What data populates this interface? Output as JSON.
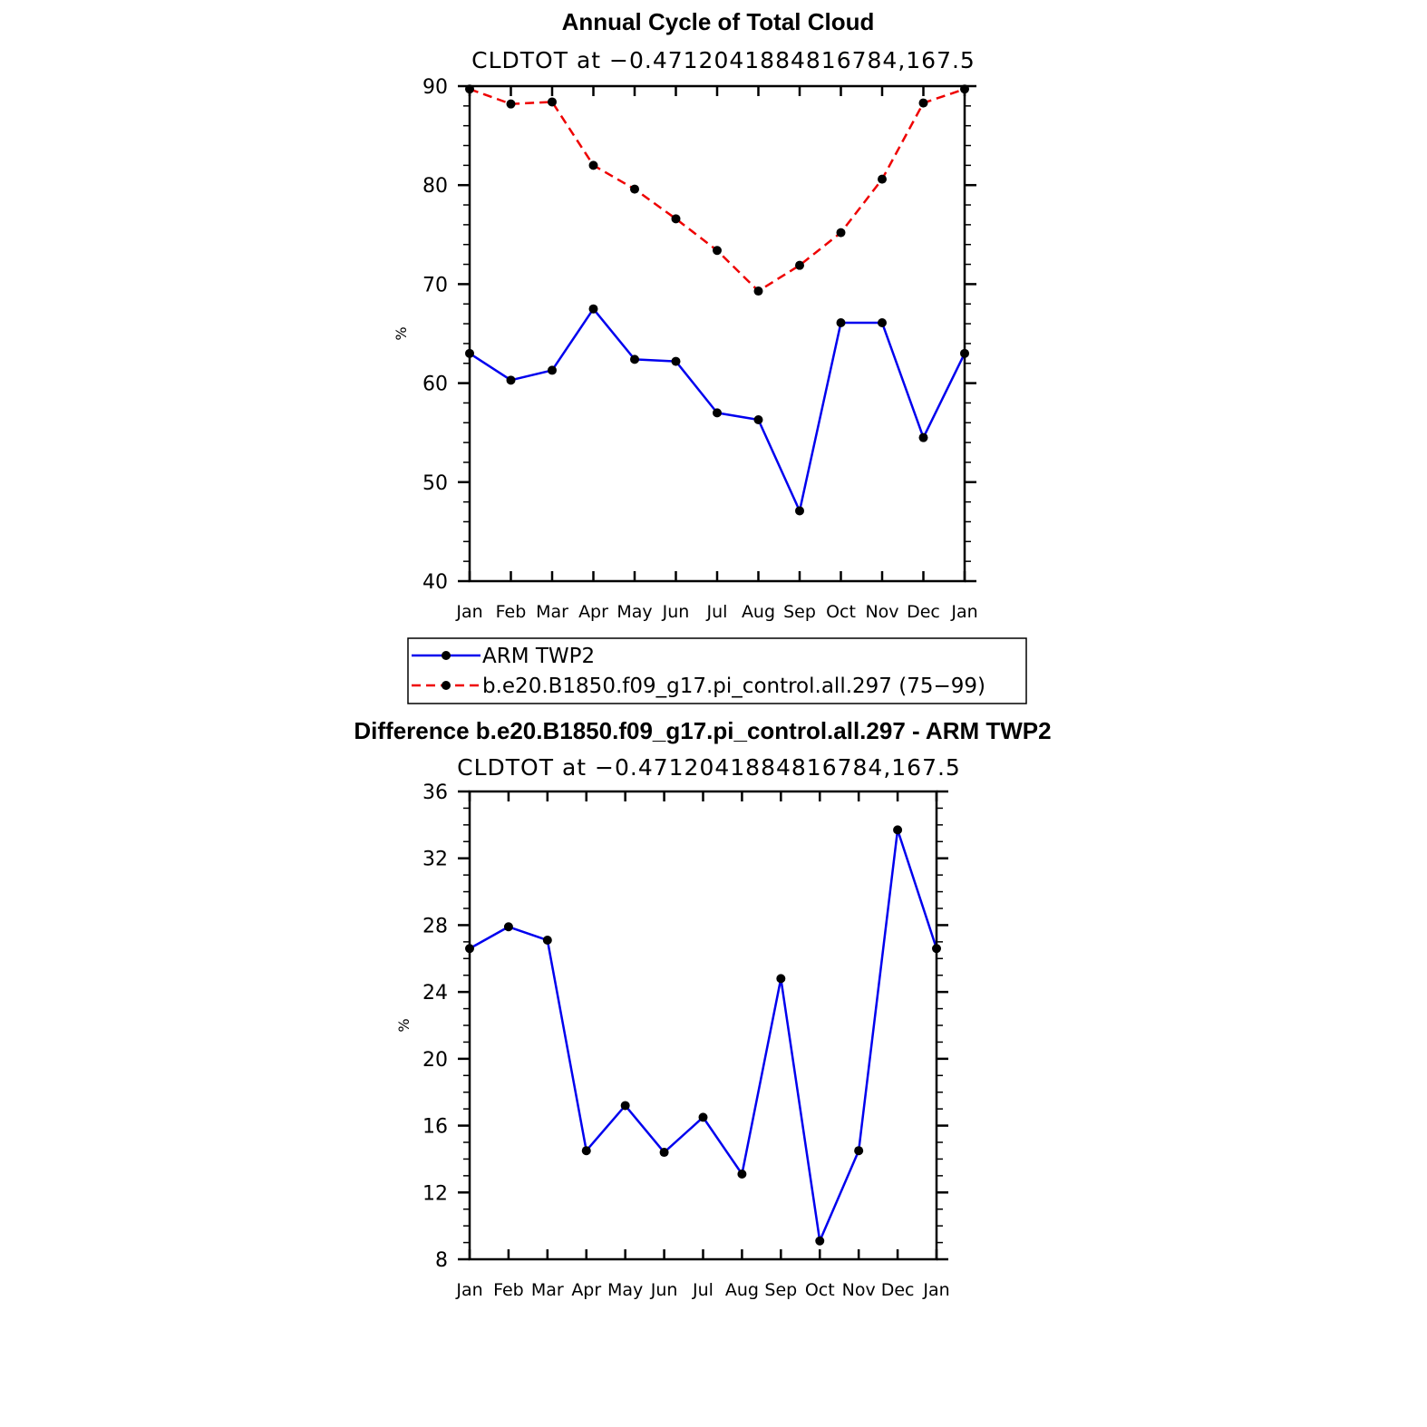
{
  "chart_data": [
    {
      "type": "line",
      "title": "Annual Cycle of Total Cloud",
      "subtitle": "CLDTOT at −0.4712041884816784,167.5",
      "xlabel": "",
      "ylabel": "%",
      "ylim": [
        40,
        90
      ],
      "yticks": [
        40,
        50,
        60,
        70,
        80,
        90
      ],
      "categories": [
        "Jan",
        "Feb",
        "Mar",
        "Apr",
        "May",
        "Jun",
        "Jul",
        "Aug",
        "Sep",
        "Oct",
        "Nov",
        "Dec",
        "Jan"
      ],
      "series": [
        {
          "name": "ARM TWP2",
          "color": "#0000ee",
          "dash": "solid",
          "values": [
            63.0,
            60.3,
            61.3,
            67.5,
            62.4,
            62.2,
            57.0,
            56.3,
            47.1,
            66.1,
            66.1,
            54.5,
            63.0
          ]
        },
        {
          "name": "b.e20.B1850.f09_g17.pi_control.all.297 (75−99)",
          "color": "#ee0000",
          "dash": "dashed",
          "values": [
            89.7,
            88.2,
            88.4,
            82.0,
            79.6,
            76.6,
            73.4,
            69.3,
            71.9,
            75.2,
            80.6,
            88.3,
            89.7
          ]
        }
      ],
      "legend": [
        "ARM TWP2",
        "b.e20.B1850.f09_g17.pi_control.all.297 (75−99)"
      ]
    },
    {
      "type": "line",
      "title": "Difference b.e20.B1850.f09_g17.pi_control.all.297 - ARM TWP2",
      "subtitle": "CLDTOT at −0.4712041884816784,167.5",
      "xlabel": "",
      "ylabel": "%",
      "ylim": [
        8,
        36
      ],
      "yticks": [
        8,
        12,
        16,
        20,
        24,
        28,
        32,
        36
      ],
      "categories": [
        "Jan",
        "Feb",
        "Mar",
        "Apr",
        "May",
        "Jun",
        "Jul",
        "Aug",
        "Sep",
        "Oct",
        "Nov",
        "Dec",
        "Jan"
      ],
      "series": [
        {
          "name": "Difference",
          "color": "#0000ee",
          "dash": "solid",
          "values": [
            26.6,
            27.9,
            27.1,
            14.5,
            17.2,
            14.4,
            16.5,
            13.1,
            24.8,
            9.1,
            14.5,
            33.7,
            26.6
          ]
        }
      ]
    }
  ]
}
